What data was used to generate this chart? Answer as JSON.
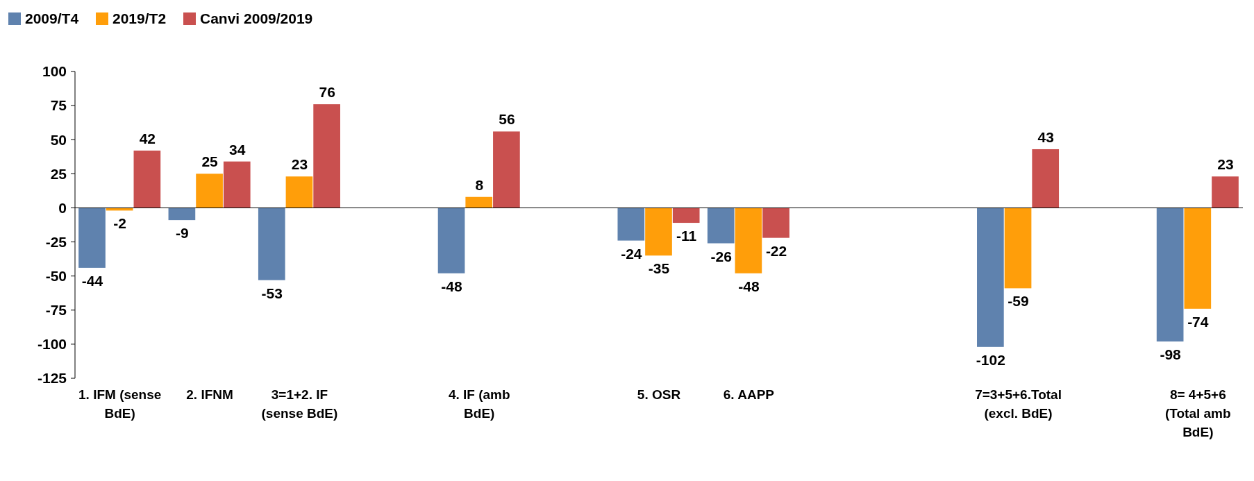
{
  "chart_data": {
    "type": "bar",
    "categories": [
      "1. IFM (sense BdE)",
      "2. IFNM",
      "3=1+2. IF (sense BdE)",
      null,
      "4. IF (amb BdE)",
      null,
      "5. OSR",
      "6. AAPP",
      null,
      null,
      "7=3+5+6.Total (excl. BdE)",
      null,
      "8= 4+5+6 (Total amb BdE)"
    ],
    "series": [
      {
        "name": "2009/T4",
        "color": "#5f82ae",
        "values": [
          -44,
          -9,
          -53,
          null,
          -48,
          null,
          -24,
          -26,
          null,
          null,
          -102,
          null,
          -98
        ]
      },
      {
        "name": "2019/T2",
        "color": "#ff9e0a",
        "values": [
          -2,
          25,
          23,
          null,
          8,
          null,
          -35,
          -48,
          null,
          null,
          -59,
          null,
          -74
        ]
      },
      {
        "name": "Canvi 2009/2019",
        "color": "#c9504f",
        "values": [
          42,
          34,
          76,
          null,
          56,
          null,
          -11,
          -22,
          null,
          null,
          43,
          null,
          23
        ]
      }
    ],
    "ylim": [
      -125,
      100
    ],
    "yticks": [
      -125,
      -100,
      -75,
      -50,
      -25,
      0,
      25,
      50,
      75,
      100
    ],
    "data_labels": true,
    "legend": "top left"
  }
}
